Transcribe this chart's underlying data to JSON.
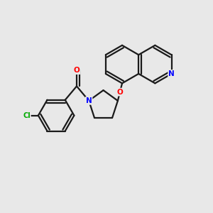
{
  "background_color": "#e8e8e8",
  "bond_color": "#1a1a1a",
  "atom_colors": {
    "N": "#0000ff",
    "O": "#ff0000",
    "Cl": "#00aa00",
    "C": "#1a1a1a"
  },
  "figsize": [
    3.0,
    3.0
  ],
  "dpi": 100
}
